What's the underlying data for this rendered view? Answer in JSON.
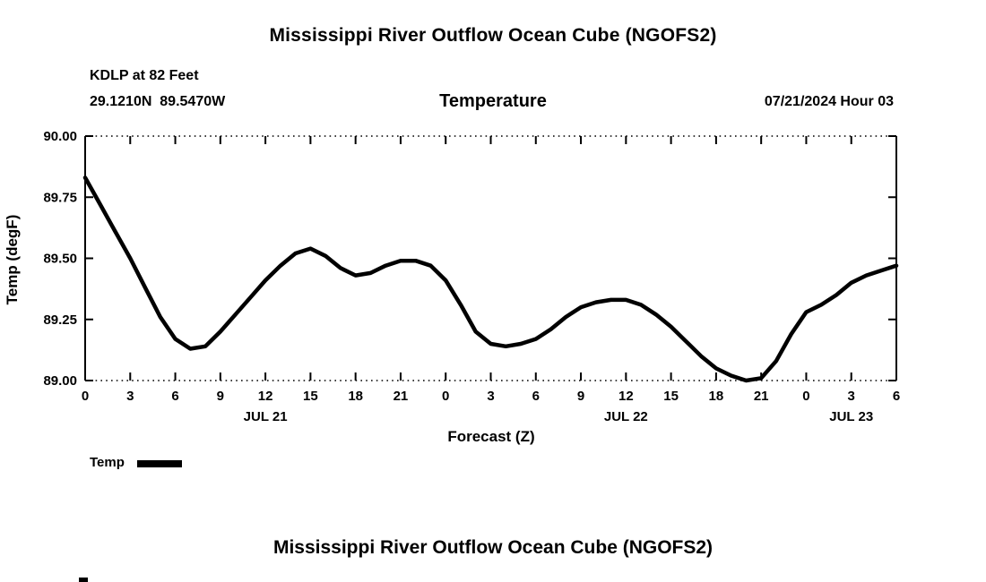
{
  "header": {
    "title": "Mississippi River Outflow Ocean Cube (NGOFS2)",
    "station": "KDLP at 82 Feet",
    "coords": "29.1210N  89.5470W",
    "variable": "Temperature",
    "datetime": "07/21/2024 Hour 03"
  },
  "footer": {
    "title": "Mississippi River Outflow Ocean Cube (NGOFS2)"
  },
  "legend": {
    "label": "Temp",
    "color": "#000000"
  },
  "chart_data": {
    "type": "line",
    "title": "Temperature",
    "xlabel": "Forecast (Z)",
    "ylabel": "Temp (degF)",
    "xlim": [
      0,
      54
    ],
    "ylim": [
      89.0,
      90.0
    ],
    "yticks": [
      89.0,
      89.25,
      89.5,
      89.75,
      90.0
    ],
    "ytick_labels": [
      "89.00",
      "89.25",
      "89.50",
      "89.75",
      "90.00"
    ],
    "xticks": [
      0,
      3,
      6,
      9,
      12,
      15,
      18,
      21,
      24,
      27,
      30,
      33,
      36,
      39,
      42,
      45,
      48,
      51,
      54
    ],
    "xtick_labels": [
      "0",
      "3",
      "6",
      "9",
      "12",
      "15",
      "18",
      "21",
      "0",
      "3",
      "6",
      "9",
      "12",
      "15",
      "18",
      "21",
      "0",
      "3",
      "6"
    ],
    "day_labels": [
      {
        "x": 12,
        "label": "JUL 21"
      },
      {
        "x": 36,
        "label": "JUL 22"
      },
      {
        "x": 51,
        "label": "JUL 23"
      }
    ],
    "line_color": "#000000",
    "grid": "dotted-top-bottom-borders",
    "legend_position": "below-left",
    "series": [
      {
        "name": "Temp",
        "x": [
          0,
          1,
          2,
          3,
          4,
          5,
          6,
          7,
          8,
          9,
          10,
          11,
          12,
          13,
          14,
          15,
          16,
          17,
          18,
          19,
          20,
          21,
          22,
          23,
          24,
          25,
          26,
          27,
          28,
          29,
          30,
          31,
          32,
          33,
          34,
          35,
          36,
          37,
          38,
          39,
          40,
          41,
          42,
          43,
          44,
          45,
          46,
          47,
          48,
          49,
          50,
          51,
          52,
          53,
          54
        ],
        "y": [
          89.83,
          89.72,
          89.61,
          89.5,
          89.38,
          89.26,
          89.17,
          89.13,
          89.14,
          89.2,
          89.27,
          89.34,
          89.41,
          89.47,
          89.52,
          89.54,
          89.51,
          89.46,
          89.43,
          89.44,
          89.47,
          89.49,
          89.49,
          89.47,
          89.41,
          89.31,
          89.2,
          89.15,
          89.14,
          89.15,
          89.17,
          89.21,
          89.26,
          89.3,
          89.32,
          89.33,
          89.33,
          89.31,
          89.27,
          89.22,
          89.16,
          89.1,
          89.05,
          89.02,
          89.0,
          89.01,
          89.08,
          89.19,
          89.28,
          89.31,
          89.35,
          89.4,
          89.43,
          89.45,
          89.47
        ]
      }
    ]
  }
}
